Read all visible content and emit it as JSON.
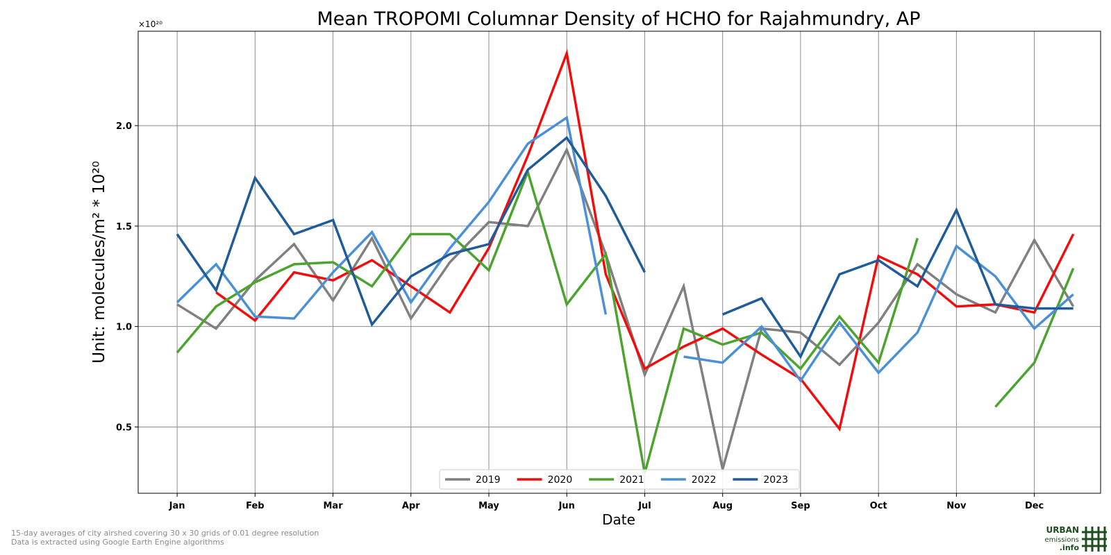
{
  "chart_data": {
    "type": "line",
    "title": "Mean TROPOMI Columnar Density of HCHO for Rajahmundry, AP",
    "xlabel": "Date",
    "ylabel": "Unit: molecules/m² * 10²⁰",
    "yexponent": "×10²⁰",
    "xlim": [
      0.5,
      12.85
    ],
    "ylim": [
      0.17,
      2.47
    ],
    "yticks": [
      0.5,
      1.0,
      1.5,
      2.0
    ],
    "ytick_labels": [
      "0.5",
      "1.0",
      "1.5",
      "2.0"
    ],
    "xticks": [
      1,
      2,
      3,
      4,
      5,
      6,
      7,
      8,
      9,
      10,
      11,
      12
    ],
    "xtick_labels": [
      "Jan",
      "Feb",
      "Mar",
      "Apr",
      "May",
      "Jun",
      "Jul",
      "Aug",
      "Sep",
      "Oct",
      "Nov",
      "Dec"
    ],
    "grid": true,
    "legend_position": "bottom-center",
    "x": [
      1,
      1.5,
      2,
      2.5,
      3,
      3.5,
      4,
      4.5,
      5,
      5.5,
      6,
      6.5,
      7,
      7.5,
      8,
      8.5,
      9,
      9.5,
      10,
      10.5,
      11,
      11.5,
      12,
      12.5
    ],
    "series": [
      {
        "name": "2019",
        "color": "#808080",
        "values": [
          1.11,
          0.99,
          1.23,
          1.41,
          1.13,
          1.44,
          1.04,
          1.32,
          1.52,
          1.5,
          1.88,
          1.36,
          0.76,
          1.2,
          0.29,
          0.99,
          0.97,
          0.81,
          1.02,
          1.31,
          1.16,
          1.07,
          1.43,
          1.1
        ]
      },
      {
        "name": "2020",
        "color": "#f20d0d",
        "values": [
          null,
          1.17,
          1.03,
          1.27,
          1.23,
          1.33,
          1.2,
          1.07,
          1.39,
          1.85,
          2.36,
          1.26,
          0.79,
          0.9,
          0.99,
          0.86,
          0.74,
          0.49,
          1.35,
          1.26,
          1.1,
          1.11,
          1.07,
          1.46
        ]
      },
      {
        "name": "2021",
        "color": "#4ca32e",
        "values": [
          0.87,
          1.1,
          1.22,
          1.31,
          1.32,
          1.2,
          1.46,
          1.46,
          1.28,
          1.77,
          1.11,
          1.36,
          0.27,
          0.99,
          0.91,
          0.97,
          0.79,
          1.05,
          0.82,
          1.44,
          null,
          0.6,
          0.82,
          1.29
        ]
      },
      {
        "name": "2022",
        "color": "#4a90d9",
        "values": [
          1.12,
          1.31,
          1.05,
          1.04,
          1.27,
          1.47,
          1.12,
          1.39,
          1.62,
          1.91,
          2.04,
          1.06,
          null,
          0.85,
          0.82,
          1.0,
          0.73,
          1.02,
          0.77,
          0.97,
          1.4,
          1.25,
          0.99,
          1.16
        ]
      },
      {
        "name": "2023",
        "color": "#1f5c99",
        "values": [
          1.46,
          1.18,
          1.74,
          1.46,
          1.53,
          1.01,
          1.25,
          1.36,
          1.41,
          1.78,
          1.94,
          1.65,
          1.27,
          null,
          1.06,
          1.14,
          0.85,
          1.26,
          1.33,
          1.2,
          1.58,
          1.11,
          1.09,
          1.09
        ]
      }
    ]
  },
  "footer": {
    "line1": "15-day averages of city airshed covering 30 x 30 grids of 0.01 degree resolution",
    "line2": "Data is extracted using Google Earth Engine algorithms"
  },
  "logo": {
    "word1": "URBAN",
    "word2": "emissions",
    "word3": ".info",
    "color": "#1f4d1f"
  }
}
